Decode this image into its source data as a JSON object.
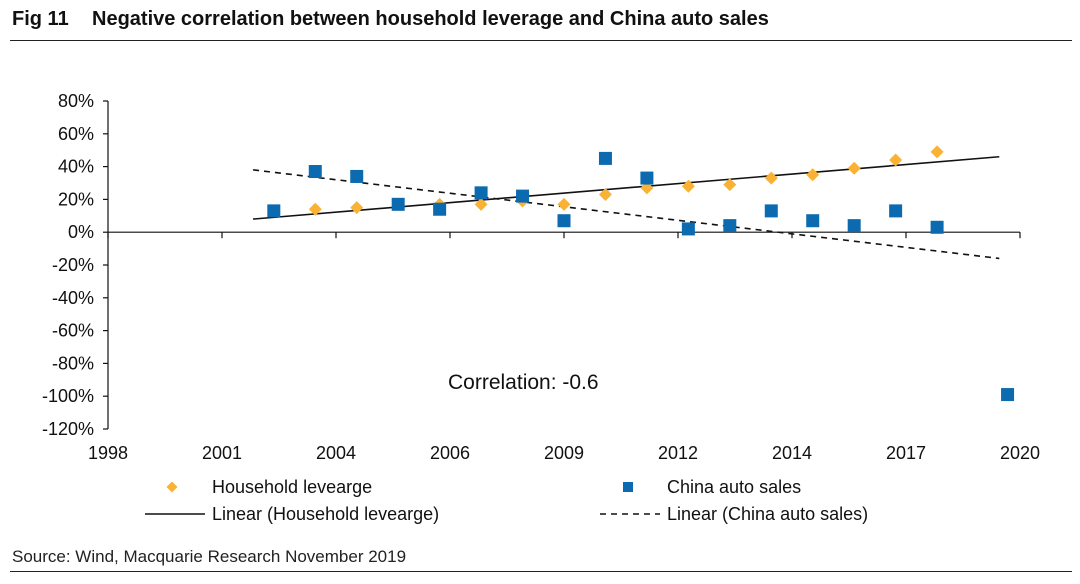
{
  "figure": {
    "number": "Fig 11",
    "title": "Negative correlation between household leverage and China auto sales",
    "source": "Source: Wind, Macquarie Research November 2019"
  },
  "chart_data": {
    "type": "scatter",
    "title": "",
    "xlabel": "",
    "ylabel": "",
    "xlim": [
      1998,
      2020
    ],
    "ylim": [
      -120,
      80
    ],
    "x_ticks": [
      "1998",
      "2001",
      "2004",
      "2006",
      "2009",
      "2012",
      "2014",
      "2017",
      "2020"
    ],
    "y_ticks": [
      "80%",
      "60%",
      "40%",
      "20%",
      "0%",
      "-20%",
      "-40%",
      "-60%",
      "-80%",
      "-100%",
      "-120%"
    ],
    "grid": false,
    "legend_position": "bottom",
    "annotation": "Correlation: -0.6",
    "series": [
      {
        "name": "Household levearge",
        "marker": "diamond",
        "color": "#F9B233",
        "x": [
          2003.0,
          2004.0,
          2005.0,
          2006.0,
          2007.0,
          2008.0,
          2009.0,
          2010.0,
          2011.0,
          2012.0,
          2013.0,
          2014.0,
          2015.0,
          2016.0,
          2017.0,
          2018.0
        ],
        "y": [
          14,
          15,
          17,
          17,
          17,
          19,
          17,
          23,
          27,
          28,
          29,
          33,
          35,
          39,
          44,
          49
        ]
      },
      {
        "name": "China auto sales",
        "marker": "square",
        "color": "#0B6AB0",
        "x": [
          2002.0,
          2003.0,
          2004.0,
          2005.0,
          2006.0,
          2007.0,
          2008.0,
          2009.0,
          2010.0,
          2011.0,
          2012.0,
          2013.0,
          2014.0,
          2015.0,
          2016.0,
          2017.0,
          2018.0
        ],
        "y": [
          13,
          37,
          34,
          17,
          14,
          24,
          22,
          7,
          45,
          33,
          2,
          4,
          13,
          7,
          4,
          13,
          3
        ]
      },
      {
        "name": "China auto sales",
        "marker": "square",
        "color": "#0B6AB0",
        "x": [
          2019.7
        ],
        "y": [
          -99
        ]
      }
    ],
    "trendlines": [
      {
        "name": "Linear (Household levearge)",
        "style": "solid",
        "color": "#111111",
        "x": [
          2001.5,
          2019.5
        ],
        "y": [
          8,
          46
        ]
      },
      {
        "name": "Linear (China auto sales)",
        "style": "dashed",
        "color": "#111111",
        "x": [
          2001.5,
          2019.5
        ],
        "y": [
          38,
          -16
        ]
      }
    ]
  },
  "legend": [
    {
      "label": "Household levearge",
      "kind": "diamond",
      "color": "#F9B233"
    },
    {
      "label": "China auto sales",
      "kind": "square",
      "color": "#0B6AB0"
    },
    {
      "label": "Linear (Household levearge)",
      "kind": "solid-line",
      "color": "#111111"
    },
    {
      "label": "Linear (China auto sales)",
      "kind": "dashed-line",
      "color": "#111111"
    }
  ]
}
